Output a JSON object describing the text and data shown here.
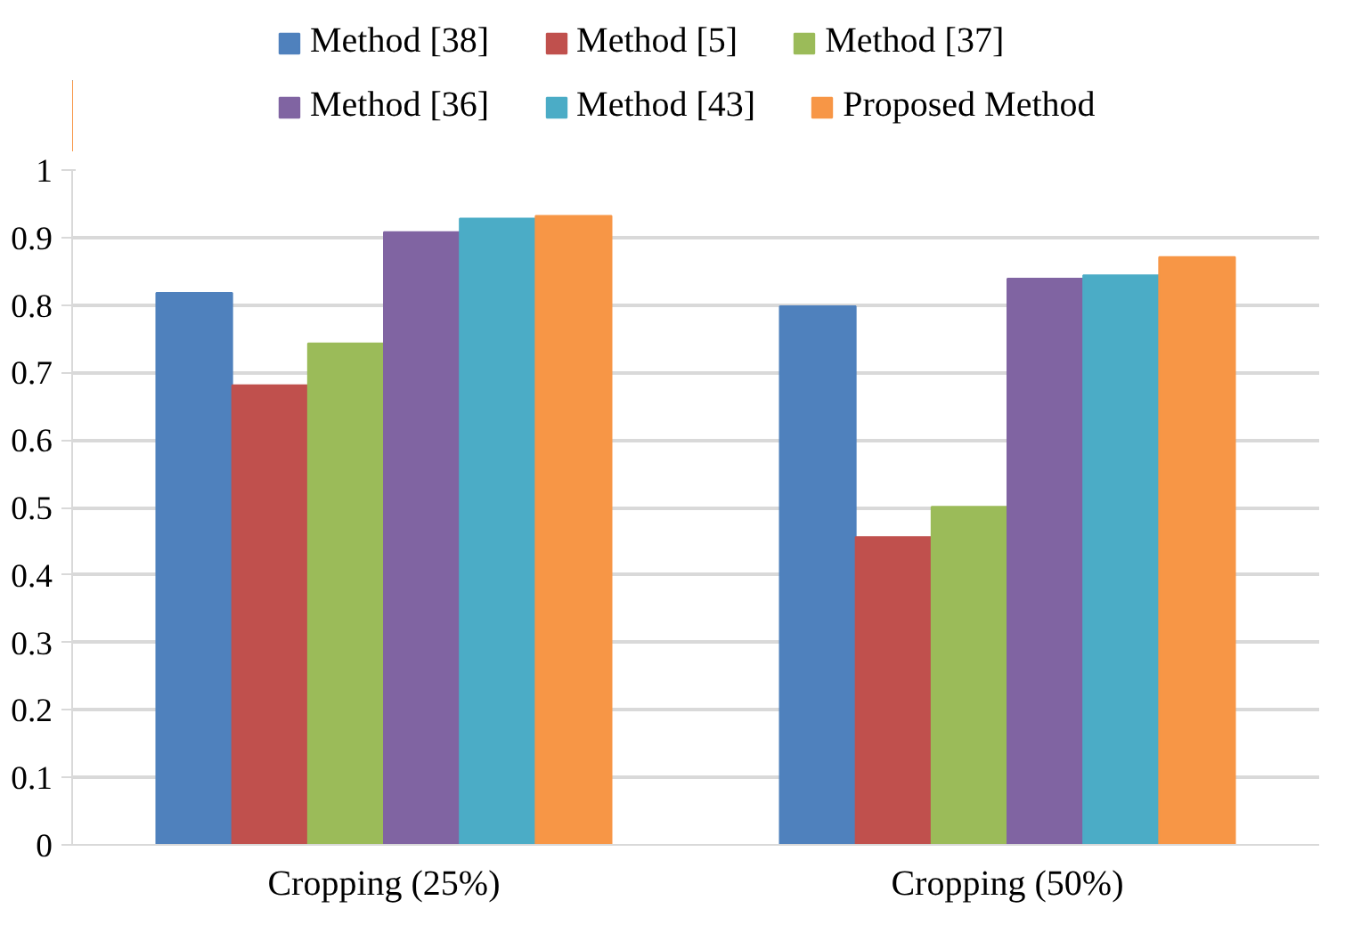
{
  "chart_data": {
    "type": "bar",
    "categories": [
      "Cropping (25%)",
      "Cropping (50%)"
    ],
    "series": [
      {
        "name": "Method [38]",
        "color": "#4f81bd",
        "values": [
          0.818,
          0.798
        ]
      },
      {
        "name": "Method [5]",
        "color": "#c0504d",
        "values": [
          0.681,
          0.456
        ]
      },
      {
        "name": "Method [37]",
        "color": "#9bbb59",
        "values": [
          0.743,
          0.501
        ]
      },
      {
        "name": "Method [36]",
        "color": "#8064a2",
        "values": [
          0.908,
          0.839
        ]
      },
      {
        "name": "Method [43]",
        "color": "#4bacc6",
        "values": [
          0.928,
          0.844
        ]
      },
      {
        "name": "Proposed Method",
        "color": "#f79646",
        "values": [
          0.932,
          0.871
        ]
      }
    ],
    "ylim": [
      0,
      1
    ],
    "yticks": [
      0,
      0.1,
      0.2,
      0.3,
      0.4,
      0.5,
      0.6,
      0.7,
      0.8,
      0.9,
      1
    ],
    "grid": "y",
    "legend": "top"
  }
}
